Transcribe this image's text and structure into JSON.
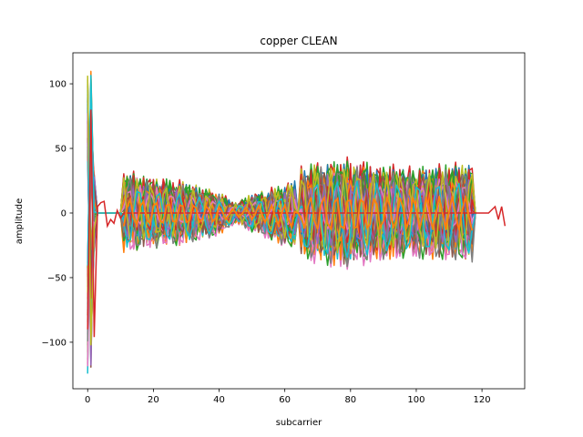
{
  "chart_data": {
    "type": "line",
    "title": "copper CLEAN",
    "xlabel": "subcarrier",
    "ylabel": "amplitude",
    "xlim": [
      -4.5,
      133
    ],
    "ylim": [
      -136,
      124
    ],
    "xticks": [
      0,
      20,
      40,
      60,
      80,
      100,
      120
    ],
    "yticks": [
      -100,
      -50,
      0,
      50,
      100
    ],
    "xtick_labels": [
      "0",
      "20",
      "40",
      "60",
      "80",
      "100",
      "120"
    ],
    "ytick_labels": [
      "−100",
      "−50",
      "0",
      "50",
      "100"
    ],
    "grid": false,
    "legend": "none",
    "series_count_approx": 60,
    "colors": [
      "#1f77b4",
      "#ff7f0e",
      "#2ca02c",
      "#d62728",
      "#9467bd",
      "#8c564b",
      "#e377c2",
      "#7f7f7f",
      "#bcbd22",
      "#17becf"
    ],
    "envelope": {
      "x": [
        0,
        1,
        2,
        11,
        20,
        30,
        40,
        45,
        50,
        60,
        63,
        64,
        65,
        70,
        80,
        90,
        100,
        110,
        117
      ],
      "upper": [
        112,
        110,
        60,
        33,
        28,
        24,
        16,
        8,
        15,
        22,
        27,
        0,
        35,
        40,
        42,
        37,
        36,
        38,
        40
      ],
      "lower": [
        -126,
        -126,
        -95,
        -32,
        -28,
        -25,
        -18,
        -8,
        -15,
        -26,
        -30,
        0,
        -35,
        -40,
        -44,
        -37,
        -36,
        -38,
        -40
      ]
    },
    "trace_highlight": {
      "x": [
        0,
        1,
        2,
        3,
        4,
        5,
        6,
        7,
        8,
        9,
        10,
        11,
        12,
        117,
        118,
        120,
        122,
        124,
        125,
        126,
        127
      ],
      "y": [
        -90,
        80,
        -96,
        5,
        8,
        9,
        -10,
        -5,
        -8,
        2,
        -4,
        0,
        0,
        0,
        0,
        0,
        0,
        5,
        -5,
        5,
        -10
      ]
    }
  }
}
